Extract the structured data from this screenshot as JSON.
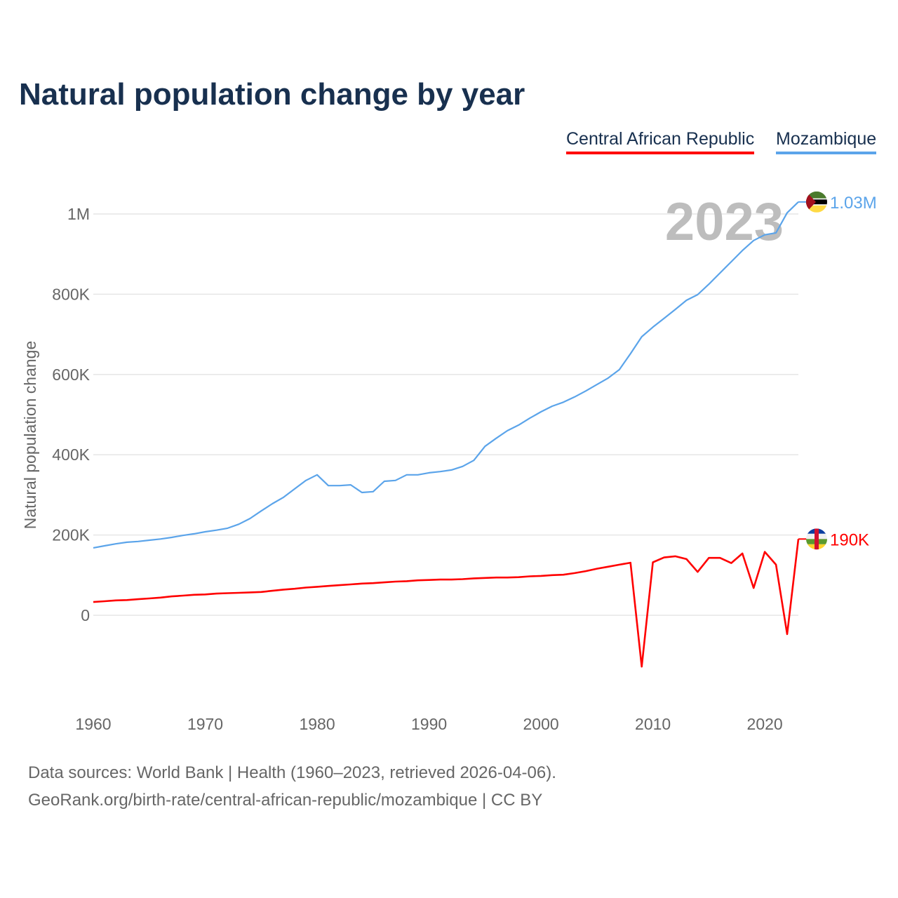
{
  "chart_data": {
    "type": "line",
    "title": "Natural population change by year",
    "xlabel": "",
    "ylabel": "Natural population change",
    "xlim": [
      1960,
      2023
    ],
    "ylim": [
      -230000,
      1100000
    ],
    "grid": true,
    "x_ticks": [
      1960,
      1970,
      1980,
      1990,
      2000,
      2010,
      2020
    ],
    "x_tick_labels": [
      "1960",
      "1970",
      "1980",
      "1990",
      "2000",
      "2010",
      "2020"
    ],
    "y_ticks": [
      0,
      200000,
      400000,
      600000,
      800000,
      1000000
    ],
    "y_tick_labels": [
      "0",
      "200K",
      "400K",
      "600K",
      "800K",
      "1M"
    ],
    "year_watermark": "2023",
    "legend_placement": "top-right",
    "x": [
      1960,
      1961,
      1962,
      1963,
      1964,
      1965,
      1966,
      1967,
      1968,
      1969,
      1970,
      1971,
      1972,
      1973,
      1974,
      1975,
      1976,
      1977,
      1978,
      1979,
      1980,
      1981,
      1982,
      1983,
      1984,
      1985,
      1986,
      1987,
      1988,
      1989,
      1990,
      1991,
      1992,
      1993,
      1994,
      1995,
      1996,
      1997,
      1998,
      1999,
      2000,
      2001,
      2002,
      2003,
      2004,
      2005,
      2006,
      2007,
      2008,
      2009,
      2010,
      2011,
      2012,
      2013,
      2014,
      2015,
      2016,
      2017,
      2018,
      2019,
      2020,
      2021,
      2022,
      2023
    ],
    "series": [
      {
        "name": "Central African Republic",
        "color": "#ff0000",
        "end_label": "190K",
        "values": [
          33000,
          35000,
          37000,
          38000,
          40000,
          42000,
          44000,
          47000,
          49000,
          51000,
          52000,
          54000,
          55000,
          56000,
          57000,
          58000,
          61000,
          64000,
          66000,
          69000,
          71000,
          73000,
          75000,
          77000,
          79000,
          80000,
          82000,
          84000,
          85000,
          87000,
          88000,
          89000,
          89000,
          90000,
          92000,
          93000,
          94000,
          94000,
          95000,
          97000,
          98000,
          100000,
          101000,
          105000,
          110000,
          116000,
          121000,
          126000,
          131000,
          -128000,
          132000,
          144000,
          147000,
          140000,
          108000,
          143000,
          143000,
          130000,
          154000,
          68000,
          158000,
          126000,
          -47000,
          190000
        ]
      },
      {
        "name": "Mozambique",
        "color": "#5ba4ea",
        "end_label": "1.03M",
        "values": [
          168000,
          173000,
          178000,
          182000,
          184000,
          187000,
          190000,
          194000,
          199000,
          203000,
          208000,
          212000,
          217000,
          227000,
          241000,
          260000,
          278000,
          294000,
          315000,
          336000,
          350000,
          323000,
          323000,
          325000,
          306000,
          308000,
          334000,
          336000,
          350000,
          350000,
          355000,
          358000,
          362000,
          371000,
          386000,
          421000,
          441000,
          460000,
          474000,
          491000,
          507000,
          521000,
          531000,
          544000,
          559000,
          575000,
          591000,
          612000,
          652000,
          694000,
          718000,
          740000,
          762000,
          785000,
          799000,
          825000,
          853000,
          881000,
          909000,
          934000,
          948000,
          953000,
          1003000,
          1030000
        ]
      }
    ]
  },
  "footer": {
    "line1": "Data sources: World Bank | Health (1960–2023, retrieved 2026-04-06).",
    "line2": "GeoRank.org/birth-rate/central-african-republic/mozambique | CC BY"
  }
}
